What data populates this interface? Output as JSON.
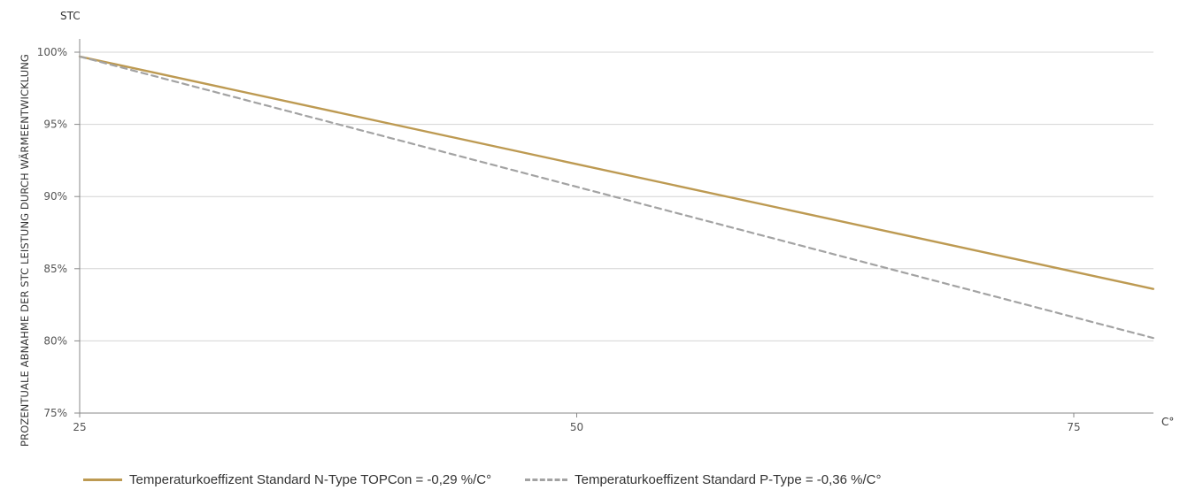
{
  "chart_data": {
    "type": "line",
    "title": "",
    "y_unit_label": "STC",
    "x_unit_label": "C°",
    "ylabel": "PROZENTUALE ABNAHME DER STC LEISTUNG DURCH WÄRMEENTWICKLUNG",
    "xlabel": "",
    "xlim": [
      25,
      79
    ],
    "ylim": [
      75,
      100
    ],
    "x_ticks": [
      25,
      50,
      75
    ],
    "x_tick_labels": [
      "25",
      "50",
      "75"
    ],
    "y_ticks": [
      75,
      80,
      85,
      90,
      95,
      100
    ],
    "y_tick_labels": [
      "75%",
      "80%",
      "85%",
      "90%",
      "95%",
      "100%"
    ],
    "grid": "horizontal",
    "legend_position": "bottom-left",
    "series": [
      {
        "name": "Temperaturkoeffizent Standard N-Type TOPCon = -0,29 %/C°",
        "color": "#bd9a52",
        "dash": "solid",
        "x": [
          25,
          79
        ],
        "y": [
          99.7,
          83.6
        ]
      },
      {
        "name": "Temperaturkoeffizent Standard P-Type = -0,36 %/C°",
        "color": "#a3a3a3",
        "dash": "dashed",
        "x": [
          25,
          79
        ],
        "y": [
          99.7,
          80.2
        ]
      }
    ]
  }
}
